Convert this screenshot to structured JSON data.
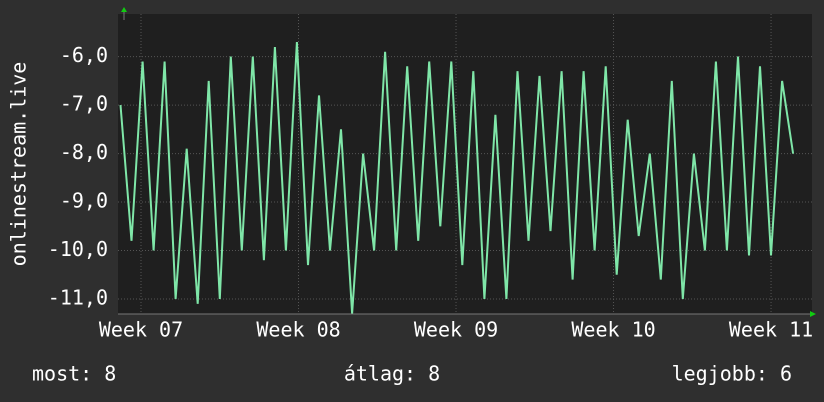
{
  "chart_data": {
    "type": "line",
    "ylabel": "onlinestream.live",
    "x": [
      6.87,
      6.94,
      7.01,
      7.08,
      7.15,
      7.22,
      7.29,
      7.36,
      7.43,
      7.5,
      7.57,
      7.64,
      7.71,
      7.78,
      7.85,
      7.92,
      7.99,
      8.06,
      8.13,
      8.2,
      8.27,
      8.34,
      8.41,
      8.48,
      8.55,
      8.62,
      8.69,
      8.76,
      8.83,
      8.9,
      8.97,
      9.04,
      9.11,
      9.18,
      9.25,
      9.32,
      9.39,
      9.46,
      9.53,
      9.6,
      9.67,
      9.74,
      9.81,
      9.88,
      9.95,
      10.02,
      10.09,
      10.16,
      10.23,
      10.3,
      10.37,
      10.44,
      10.51,
      10.58,
      10.65,
      10.72,
      10.79,
      10.86,
      10.93,
      11.0,
      11.07,
      11.14
    ],
    "series": [
      {
        "color": "#7fe6a8",
        "values": [
          -7.0,
          -9.8,
          -6.1,
          -10.0,
          -6.1,
          -11.0,
          -7.9,
          -11.1,
          -6.5,
          -11.0,
          -6.0,
          -10.0,
          -6.0,
          -10.2,
          -5.8,
          -10.0,
          -5.7,
          -10.3,
          -6.8,
          -10.0,
          -7.5,
          -11.3,
          -8.0,
          -10.0,
          -5.9,
          -10.0,
          -6.2,
          -9.8,
          -6.1,
          -9.5,
          -6.1,
          -10.3,
          -6.3,
          -11.0,
          -7.2,
          -11.0,
          -6.3,
          -9.8,
          -6.4,
          -9.6,
          -6.3,
          -10.6,
          -6.3,
          -10.0,
          -6.2,
          -10.5,
          -7.3,
          -9.7,
          -8.0,
          -10.6,
          -6.5,
          -11.0,
          -8.0,
          -10.0,
          -6.1,
          -10.0,
          -6.0,
          -10.1,
          -6.2,
          -10.1,
          -6.5,
          -8.0
        ]
      }
    ],
    "xlim": [
      6.854,
      11.26
    ],
    "xticks": [
      {
        "value": 7,
        "label": "Week 07"
      },
      {
        "value": 8,
        "label": "Week 08"
      },
      {
        "value": 9,
        "label": "Week 09"
      },
      {
        "value": 10,
        "label": "Week 10"
      },
      {
        "value": 11,
        "label": "Week 11"
      }
    ],
    "ylim": [
      -11.31,
      -5.12
    ],
    "yticks": [
      {
        "value": -11,
        "label": "-11,0"
      },
      {
        "value": -10,
        "label": "-10,0"
      },
      {
        "value": -9,
        "label": "-9,0"
      },
      {
        "value": -8,
        "label": "-8,0"
      },
      {
        "value": -7,
        "label": "-7,0"
      },
      {
        "value": -6,
        "label": "-6,0"
      }
    ],
    "grid": true
  },
  "footer": [
    "most: 8",
    "átlag: 8",
    "legjobb: 6"
  ]
}
